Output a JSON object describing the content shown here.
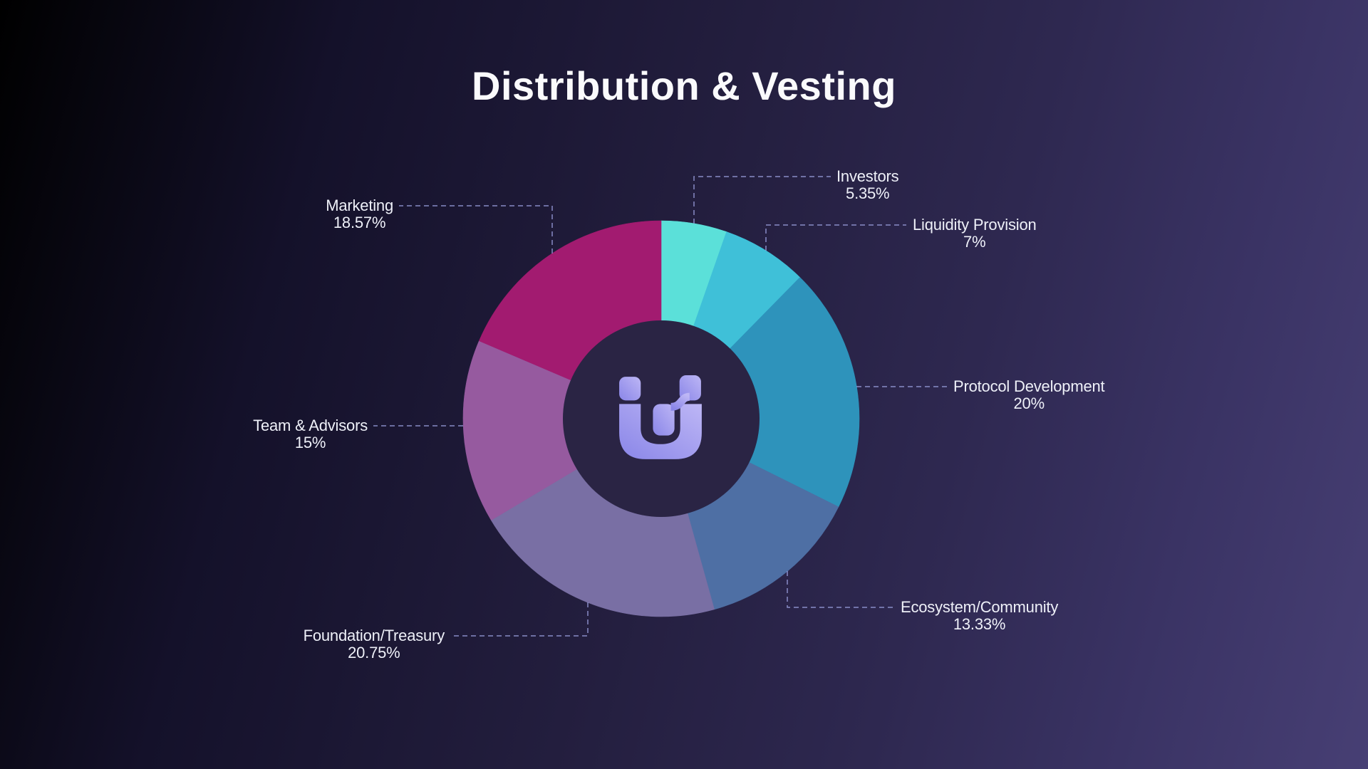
{
  "title": "Distribution & Vesting",
  "icons": {
    "center_logo": "u-blocks-logo-icon"
  },
  "colors": {
    "background_start": "#000000",
    "background_end": "#473f74",
    "donut_hole": "#2a2444",
    "leader_line": "#9aa0de",
    "label_text": "#eef0f8",
    "title_text": "#fafafc",
    "logo_gradient_start": "#bdb6f5",
    "logo_gradient_end": "#8a86e8"
  },
  "chart_data": {
    "type": "pie",
    "subtype": "donut",
    "title": "Distribution & Vesting",
    "start_angle_deg": 0,
    "direction": "clockwise",
    "donut_hole_ratio": 0.5,
    "legend_position": "callout-labels",
    "segments": [
      {
        "label": "Investors",
        "value": 5.35,
        "display": "5.35%",
        "color": "#5be0d9"
      },
      {
        "label": "Liquidity Provision",
        "value": 7,
        "display": "7%",
        "color": "#3fc0d8"
      },
      {
        "label": "Protocol Development",
        "value": 20,
        "display": "20%",
        "color": "#2e93bb"
      },
      {
        "label": "Ecosystem/Community",
        "value": 13.33,
        "display": "13.33%",
        "color": "#4e6fa4"
      },
      {
        "label": "Foundation/Treasury",
        "value": 20.75,
        "display": "20.75%",
        "color": "#796fa4"
      },
      {
        "label": "Team & Advisors",
        "value": 15,
        "display": "15%",
        "color": "#965a9f"
      },
      {
        "label": "Marketing",
        "value": 18.57,
        "display": "18.57%",
        "color": "#a21b70"
      }
    ]
  }
}
